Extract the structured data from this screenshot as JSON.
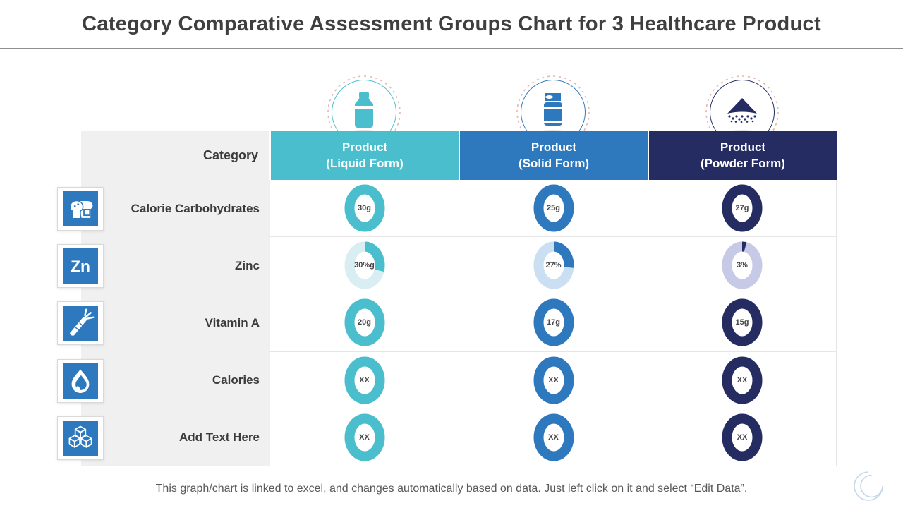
{
  "slide": {
    "title": "Category Comparative Assessment Groups Chart for 3 Healthcare Product",
    "footer": "This graph/chart is linked to excel, and changes automatically based on data. Just left click on it and select “Edit Data”."
  },
  "table": {
    "category_header": "Category",
    "columns": [
      {
        "label": "Product\n(Liquid Form)",
        "color": "#4bbecd",
        "light": "#d9eef2",
        "icon": "milk-bottle-icon"
      },
      {
        "label": "Product\n(Solid Form)",
        "color": "#2e79be",
        "light": "#cbdff3",
        "icon": "pill-jar-icon"
      },
      {
        "label": "Product\n(Powder Form)",
        "color": "#252c62",
        "light": "#c6cae7",
        "icon": "powder-pile-icon"
      }
    ],
    "rows": [
      {
        "label": "Calorie Carbohydrates",
        "icon": "bread-icon",
        "cells": [
          {
            "text": "30g",
            "pct": 100
          },
          {
            "text": "25g",
            "pct": 100
          },
          {
            "text": "27g",
            "pct": 100
          }
        ]
      },
      {
        "label": "Zinc",
        "icon": "zinc-symbol-icon",
        "cells": [
          {
            "text": "30%g",
            "pct": 30
          },
          {
            "text": "27%",
            "pct": 27
          },
          {
            "text": "3%",
            "pct": 3
          }
        ]
      },
      {
        "label": "Vitamin A",
        "icon": "carrot-icon",
        "cells": [
          {
            "text": "20g",
            "pct": 100
          },
          {
            "text": "17g",
            "pct": 100
          },
          {
            "text": "15g",
            "pct": 100
          }
        ]
      },
      {
        "label": "Calories",
        "icon": "water-drop-icon",
        "cells": [
          {
            "text": "XX",
            "pct": 100
          },
          {
            "text": "XX",
            "pct": 100
          },
          {
            "text": "XX",
            "pct": 100
          }
        ]
      },
      {
        "label": "Add Text Here",
        "icon": "sugar-cubes-icon",
        "cells": [
          {
            "text": "XX",
            "pct": 100
          },
          {
            "text": "XX",
            "pct": 100
          },
          {
            "text": "XX",
            "pct": 100
          }
        ]
      }
    ]
  },
  "chart_data": {
    "type": "table",
    "title": "Category Comparative Assessment Groups Chart for 3 Healthcare Product",
    "columns": [
      "Product (Liquid Form)",
      "Product (Solid Form)",
      "Product (Powder Form)"
    ],
    "categories": [
      "Calorie Carbohydrates",
      "Zinc",
      "Vitamin A",
      "Calories",
      "Add Text Here"
    ],
    "values": [
      [
        "30g",
        "25g",
        "27g"
      ],
      [
        "30%g",
        "27%",
        "3%"
      ],
      [
        "20g",
        "17g",
        "15g"
      ],
      [
        "XX",
        "XX",
        "XX"
      ],
      [
        "XX",
        "XX",
        "XX"
      ]
    ],
    "donut_fill_percent": [
      [
        100,
        100,
        100
      ],
      [
        30,
        27,
        3
      ],
      [
        100,
        100,
        100
      ],
      [
        100,
        100,
        100
      ],
      [
        100,
        100,
        100
      ]
    ],
    "legend_position": "none",
    "notes": "Each cell is a donut marker; Zinc row donuts are partial rings starting at 12 o'clock clockwise."
  },
  "colors": {
    "liquid_teal": "#4bbecd",
    "solid_blue": "#2e79be",
    "powder_navy": "#252c62",
    "row_icon_blue": "#2e79be",
    "label_column_gray": "#f0f0f0",
    "title_text": "#3f3f3f",
    "footer_text": "#595959",
    "dashed_ring": "#e3b7ae"
  }
}
